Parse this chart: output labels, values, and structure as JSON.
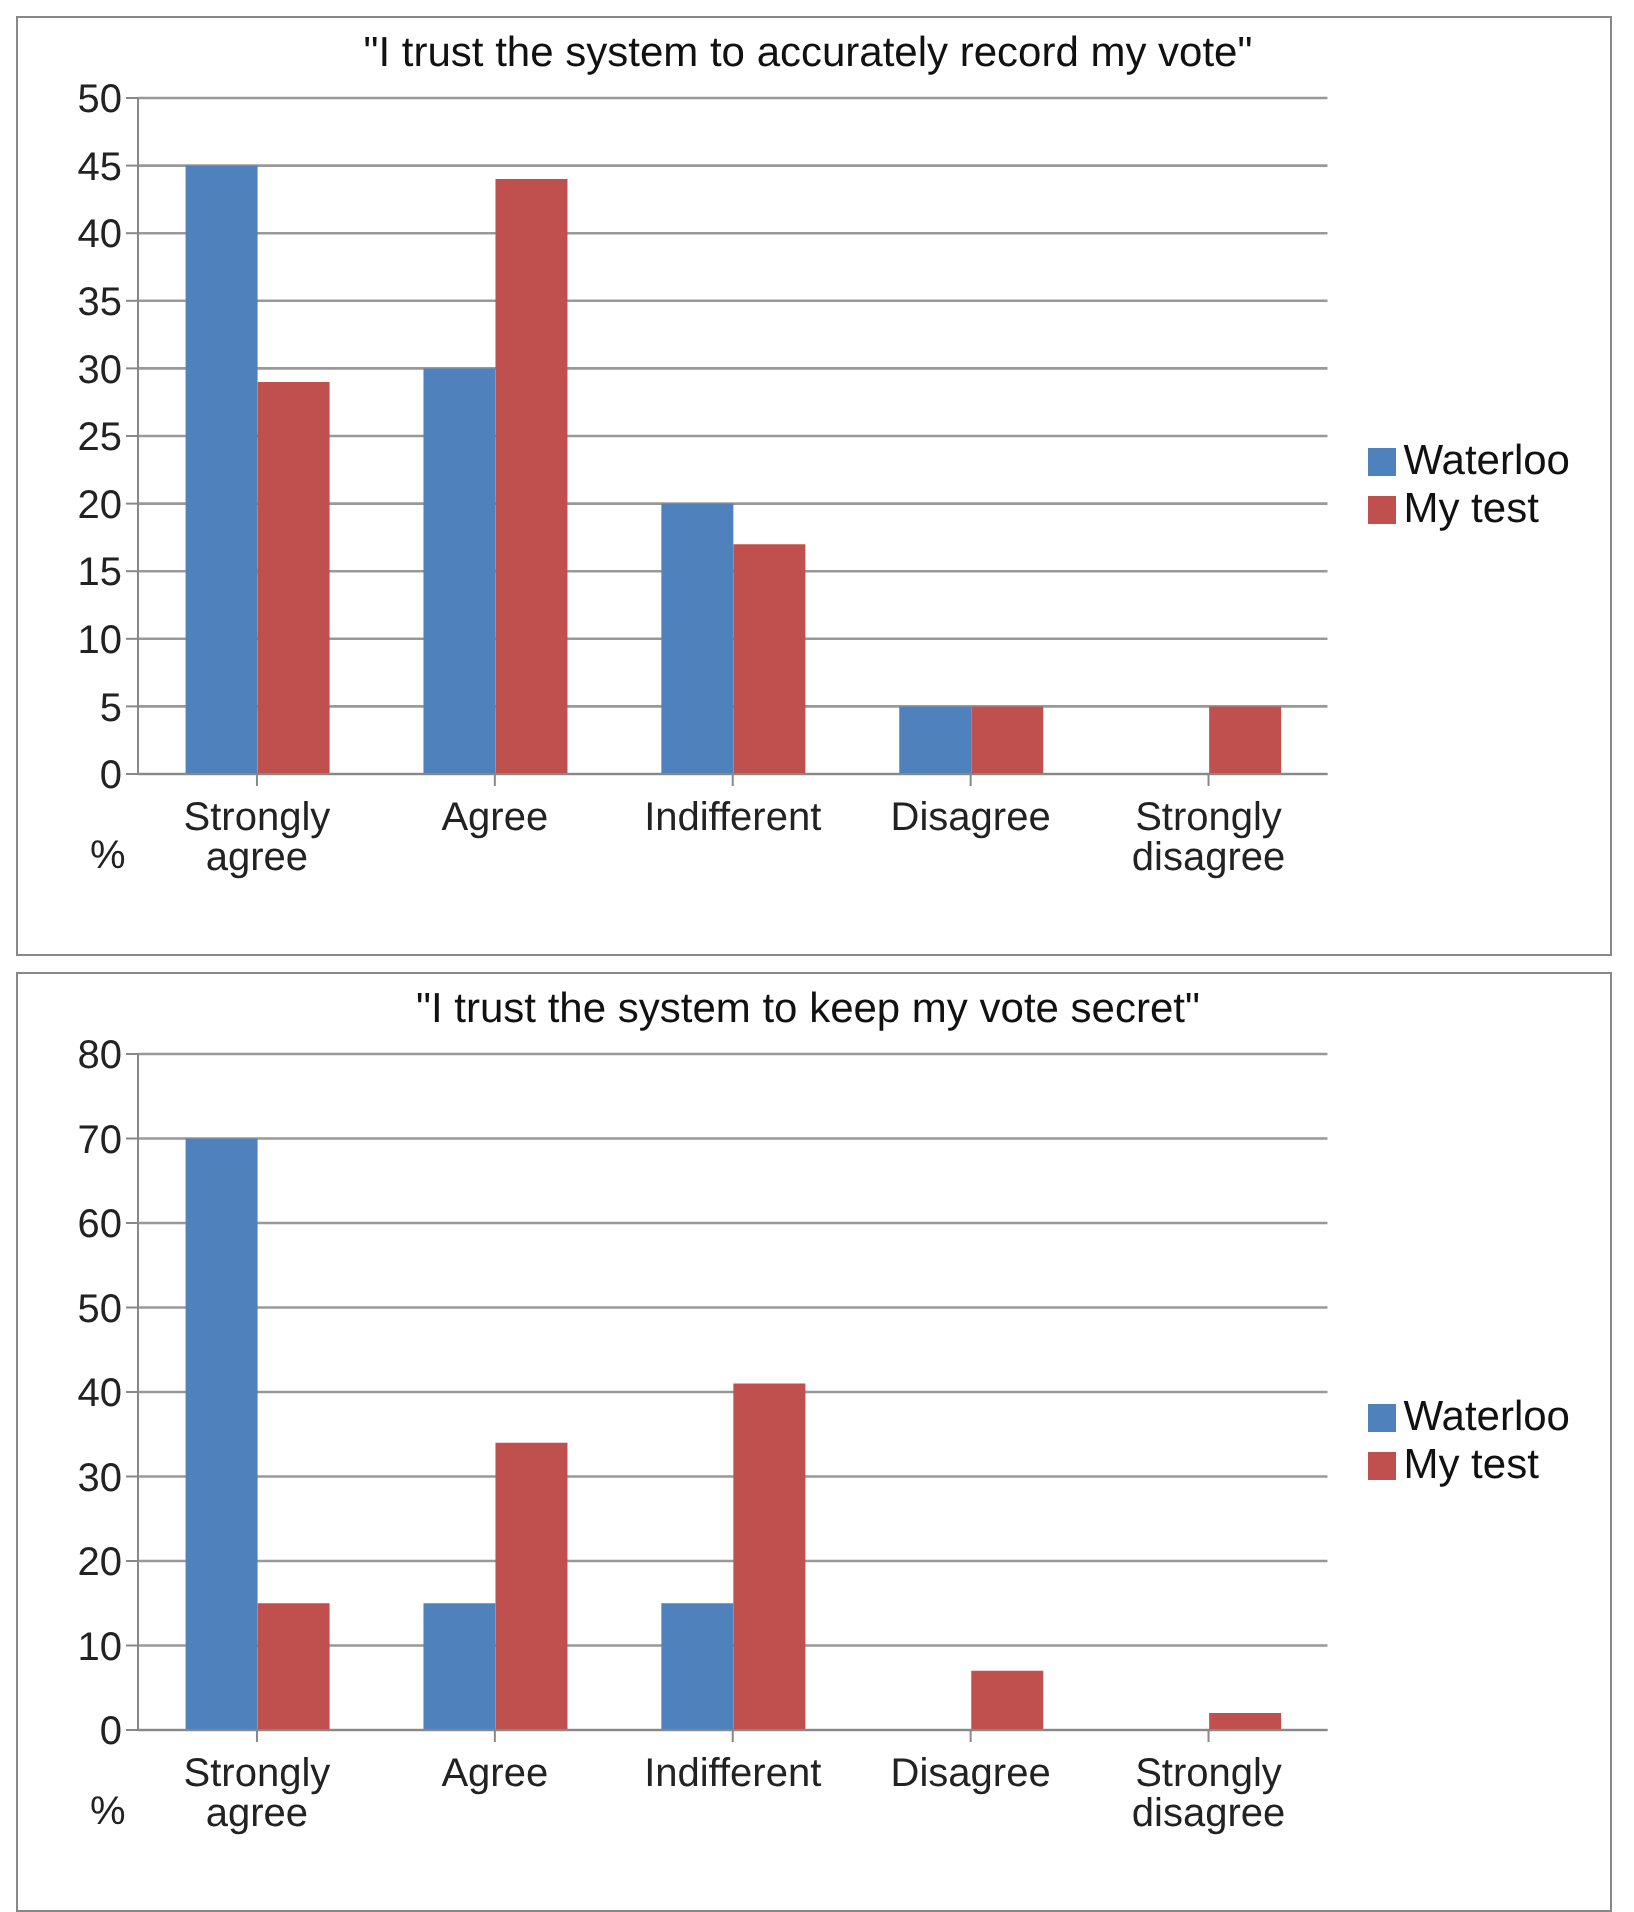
{
  "chart_data": [
    {
      "type": "bar",
      "title": "\"I trust the system to accurately record my vote\"",
      "ylabel": "%",
      "categories": [
        "Strongly agree",
        "Agree",
        "Indifferent",
        "Disagree",
        "Strongly disagree"
      ],
      "series": [
        {
          "name": "Waterloo",
          "color": "#4f81bd",
          "values": [
            45,
            30,
            20,
            5,
            0
          ]
        },
        {
          "name": "My test",
          "color": "#c0504d",
          "values": [
            29,
            44,
            17,
            5,
            5
          ]
        }
      ],
      "ylim": [
        0,
        50
      ],
      "yticks": [
        0,
        5,
        10,
        15,
        20,
        25,
        30,
        35,
        40,
        45,
        50
      ],
      "grid": "y",
      "legend": "right"
    },
    {
      "type": "bar",
      "title": "\"I trust the system to keep my vote secret\"",
      "ylabel": "%",
      "categories": [
        "Strongly agree",
        "Agree",
        "Indifferent",
        "Disagree",
        "Strongly disagree"
      ],
      "series": [
        {
          "name": "Waterloo",
          "color": "#4f81bd",
          "values": [
            70,
            15,
            15,
            0,
            0
          ]
        },
        {
          "name": "My test",
          "color": "#c0504d",
          "values": [
            15,
            34,
            41,
            7,
            2
          ]
        }
      ],
      "ylim": [
        0,
        80
      ],
      "yticks": [
        0,
        10,
        20,
        30,
        40,
        50,
        60,
        70,
        80
      ],
      "grid": "y",
      "legend": "right"
    }
  ]
}
